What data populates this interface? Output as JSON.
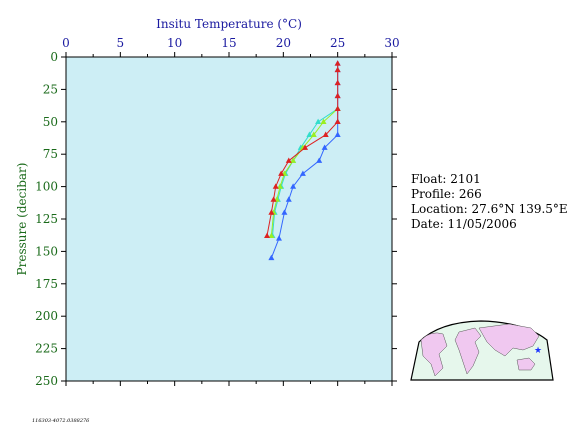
{
  "chart_data": {
    "type": "line",
    "title": "",
    "xlabel": "Insitu Temperature (°C)",
    "ylabel": "Pressure (decibar)",
    "xlim": [
      0,
      30
    ],
    "ylim": [
      0,
      250
    ],
    "y_inverted": true,
    "x_ticks": [
      "0",
      "5",
      "10",
      "15",
      "20",
      "25",
      "30"
    ],
    "y_ticks": [
      "0",
      "25",
      "50",
      "75",
      "100",
      "125",
      "150",
      "175",
      "200",
      "225",
      "250"
    ],
    "x_tick_values": [
      0,
      5,
      10,
      15,
      20,
      25,
      30
    ],
    "y_tick_values": [
      0,
      25,
      50,
      75,
      100,
      125,
      150,
      175,
      200,
      225,
      250
    ],
    "grid": false,
    "plot_background": "#cdeef5",
    "series": [
      {
        "color": "#3366ff",
        "points": [
          [
            25.0,
            5
          ],
          [
            25.0,
            10
          ],
          [
            25.0,
            20
          ],
          [
            25.0,
            30
          ],
          [
            25.0,
            40
          ],
          [
            25.0,
            50
          ],
          [
            25.0,
            60
          ],
          [
            23.8,
            70
          ],
          [
            23.3,
            80
          ],
          [
            21.8,
            90
          ],
          [
            20.9,
            100
          ],
          [
            20.5,
            110
          ],
          [
            20.1,
            120
          ],
          [
            19.6,
            140
          ],
          [
            18.9,
            155
          ]
        ]
      },
      {
        "color": "#33ddcc",
        "points": [
          [
            25.0,
            40
          ],
          [
            23.2,
            50
          ],
          [
            22.4,
            60
          ],
          [
            21.6,
            70
          ],
          [
            20.9,
            80
          ],
          [
            20.2,
            90
          ],
          [
            19.8,
            100
          ],
          [
            19.5,
            110
          ],
          [
            19.2,
            120
          ],
          [
            19.0,
            138
          ]
        ]
      },
      {
        "color": "#99ee22",
        "points": [
          [
            25.0,
            40
          ],
          [
            23.7,
            50
          ],
          [
            22.8,
            60
          ],
          [
            21.8,
            70
          ],
          [
            20.9,
            80
          ],
          [
            20.1,
            90
          ],
          [
            19.7,
            100
          ],
          [
            19.4,
            110
          ],
          [
            19.1,
            120
          ],
          [
            18.9,
            138
          ]
        ]
      },
      {
        "color": "#dd2222",
        "points": [
          [
            25.0,
            5
          ],
          [
            25.0,
            10
          ],
          [
            25.0,
            20
          ],
          [
            25.0,
            30
          ],
          [
            25.0,
            40
          ],
          [
            25.0,
            50
          ],
          [
            23.9,
            60
          ],
          [
            22.0,
            70
          ],
          [
            20.5,
            80
          ],
          [
            19.8,
            90
          ],
          [
            19.3,
            100
          ],
          [
            19.1,
            110
          ],
          [
            18.9,
            120
          ],
          [
            18.5,
            138
          ]
        ]
      }
    ]
  },
  "info": {
    "float": "Float:  2101",
    "profile": "Profile:  266",
    "location": "Location:  27.6°N  139.5°E",
    "date": "Date:  11/05/2006"
  },
  "footnote": "116303-4072.0388276",
  "colors": {
    "map_ocean": "#e6f7ec",
    "map_land": "#f0c8f0",
    "map_marker": "#1a33ff"
  },
  "map": {
    "marker": "star-icon"
  }
}
